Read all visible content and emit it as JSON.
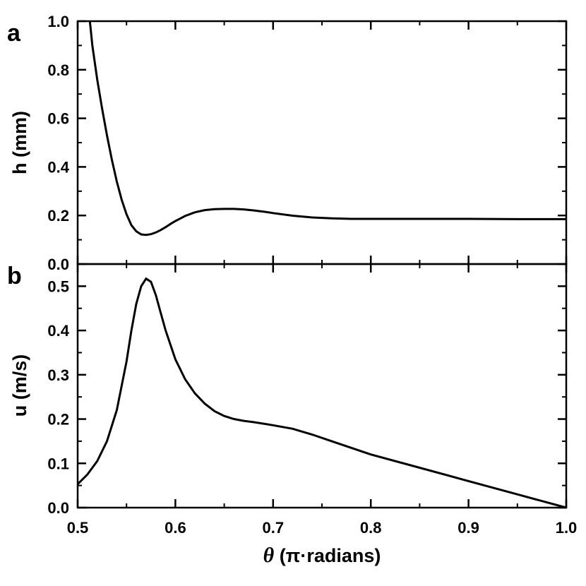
{
  "chart_data": [
    {
      "type": "line",
      "panel_label": "a",
      "ylabel": "h (mm)",
      "xlim": [
        0.5,
        1.0
      ],
      "ylim": [
        0.0,
        1.0
      ],
      "yticks": [
        "0.0",
        "0.2",
        "0.4",
        "0.6",
        "0.8",
        "1.0"
      ],
      "series": [
        {
          "x": [
            0.5125,
            0.515,
            0.52,
            0.525,
            0.53,
            0.535,
            0.54,
            0.545,
            0.55,
            0.555,
            0.56,
            0.565,
            0.57,
            0.575,
            0.58,
            0.585,
            0.59,
            0.595,
            0.6,
            0.61,
            0.62,
            0.63,
            0.64,
            0.65,
            0.66,
            0.67,
            0.68,
            0.69,
            0.7,
            0.72,
            0.74,
            0.76,
            0.78,
            0.8,
            0.85,
            0.9,
            0.95,
            1.0
          ],
          "values": [
            1.0,
            0.9,
            0.76,
            0.64,
            0.53,
            0.43,
            0.34,
            0.265,
            0.205,
            0.16,
            0.135,
            0.122,
            0.12,
            0.123,
            0.13,
            0.14,
            0.152,
            0.165,
            0.177,
            0.198,
            0.213,
            0.222,
            0.226,
            0.227,
            0.227,
            0.225,
            0.221,
            0.216,
            0.21,
            0.199,
            0.192,
            0.188,
            0.186,
            0.186,
            0.186,
            0.186,
            0.185,
            0.185
          ]
        }
      ]
    },
    {
      "type": "line",
      "panel_label": "b",
      "ylabel": "u (m/s)",
      "xlabel_symbol": "θ",
      "xlabel": " (π·radians)",
      "xlim": [
        0.5,
        1.0
      ],
      "ylim": [
        0.0,
        0.55
      ],
      "xticks": [
        "0.5",
        "0.6",
        "0.7",
        "0.8",
        "0.9",
        "1.0"
      ],
      "yticks": [
        "0.0",
        "0.1",
        "0.2",
        "0.3",
        "0.4",
        "0.5"
      ],
      "series": [
        {
          "x": [
            0.5,
            0.51,
            0.52,
            0.53,
            0.54,
            0.55,
            0.555,
            0.56,
            0.565,
            0.57,
            0.575,
            0.58,
            0.585,
            0.59,
            0.6,
            0.61,
            0.62,
            0.63,
            0.64,
            0.65,
            0.66,
            0.67,
            0.68,
            0.7,
            0.72,
            0.74,
            0.76,
            0.78,
            0.8,
            0.85,
            0.9,
            0.95,
            1.0
          ],
          "values": [
            0.053,
            0.075,
            0.105,
            0.15,
            0.22,
            0.33,
            0.4,
            0.46,
            0.5,
            0.517,
            0.51,
            0.48,
            0.44,
            0.4,
            0.335,
            0.29,
            0.258,
            0.235,
            0.218,
            0.207,
            0.2,
            0.196,
            0.193,
            0.186,
            0.178,
            0.165,
            0.15,
            0.135,
            0.12,
            0.09,
            0.06,
            0.03,
            0.0
          ]
        }
      ]
    }
  ]
}
